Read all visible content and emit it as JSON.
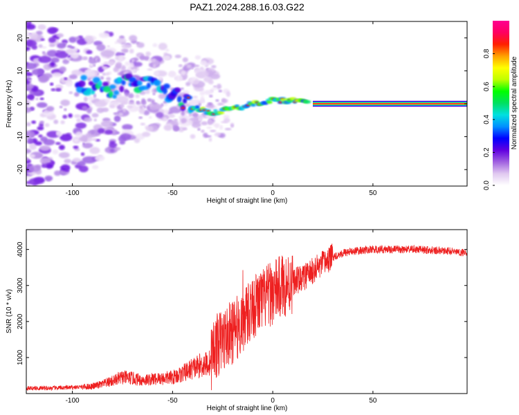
{
  "title": "PAZ1.2024.288.16.03.G22",
  "chart_data": [
    {
      "type": "heatmap",
      "xlabel": "Height of straight line (km)",
      "ylabel": "Frequency (Hz)",
      "xlim": [
        -123,
        97
      ],
      "ylim": [
        -25,
        25
      ],
      "xticks": [
        -100,
        -50,
        0,
        50
      ],
      "yticks": [
        -20,
        -10,
        0,
        10,
        20
      ],
      "colorbar": {
        "label": "Normalized spectral amplitude",
        "range": [
          0,
          1
        ],
        "ticks": [
          0.0,
          0.2,
          0.4,
          0.6,
          0.8
        ],
        "colors": [
          "#ffffff",
          "#e0c8f0",
          "#a060e0",
          "#6000e0",
          "#0000ff",
          "#0090ff",
          "#00e0e0",
          "#00e060",
          "#00ff00",
          "#c0ff00",
          "#ffff00",
          "#ffa000",
          "#ff2000",
          "#ff0060",
          "#ff0090"
        ]
      },
      "ridge": {
        "x": [
          -97,
          -90,
          -80,
          -70,
          -65,
          -60,
          -55,
          -50,
          -45,
          -40,
          -35,
          -30,
          -25,
          -20,
          -15,
          -10,
          -5,
          0,
          5,
          10,
          15,
          20,
          95
        ],
        "freq": [
          6,
          5,
          4,
          7,
          6,
          5,
          4,
          3,
          1,
          -1,
          -2,
          -3,
          -2,
          -1,
          -1,
          0,
          0.5,
          1,
          1,
          1,
          0.8,
          0,
          0
        ]
      }
    },
    {
      "type": "line",
      "xlabel": "Height of straight line (km)",
      "ylabel": "SNR (10 * v/v)",
      "xlim": [
        -123,
        97
      ],
      "ylim": [
        0,
        4550
      ],
      "xticks": [
        -100,
        -50,
        0,
        50
      ],
      "yticks": [
        1000,
        2000,
        3000,
        4000
      ],
      "color": "#ee2020",
      "series": [
        {
          "name": "",
          "x": [
            -123,
            -110,
            -100,
            -90,
            -85,
            -80,
            -75,
            -70,
            -65,
            -60,
            -55,
            -50,
            -45,
            -40,
            -35,
            -31,
            -30,
            -25,
            -20,
            -15,
            -12,
            -10,
            -5,
            0,
            5,
            10,
            15,
            20,
            25,
            30,
            35,
            40,
            50,
            60,
            70,
            80,
            90,
            97
          ],
          "y": [
            150,
            150,
            170,
            200,
            260,
            350,
            450,
            420,
            370,
            400,
            420,
            450,
            550,
            700,
            800,
            850,
            1200,
            1500,
            1700,
            2000,
            2300,
            2400,
            2600,
            2800,
            3000,
            3100,
            3200,
            3400,
            3600,
            3800,
            3900,
            3950,
            4000,
            4000,
            4000,
            3980,
            3950,
            3900
          ]
        }
      ]
    }
  ]
}
